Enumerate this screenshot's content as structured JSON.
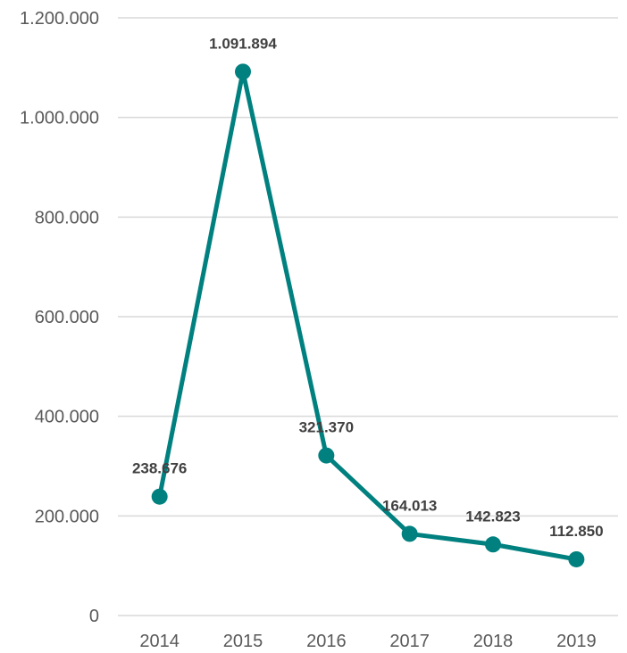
{
  "chart_data": {
    "type": "line",
    "title": "",
    "xlabel": "",
    "ylabel": "",
    "categories": [
      "2014",
      "2015",
      "2016",
      "2017",
      "2018",
      "2019"
    ],
    "series": [
      {
        "values": [
          238676,
          1091894,
          321370,
          164013,
          142823,
          112850
        ],
        "data_labels": [
          "238.676",
          "1.091.894",
          "321.370",
          "164.013",
          "142.823",
          "112.850"
        ]
      }
    ],
    "ylim": [
      0,
      1200000
    ],
    "y_ticks": [
      0,
      200000,
      400000,
      600000,
      800000,
      1000000,
      1200000
    ],
    "y_tick_labels": [
      "0",
      "200.000",
      "400.000",
      "600.000",
      "800.000",
      "1.000.000",
      "1.200.000"
    ],
    "grid": true,
    "legend": "none",
    "colors": {
      "series": "#00807F",
      "grid": "#D9D9D9",
      "axis_text": "#595959",
      "label_text": "#404040"
    }
  }
}
